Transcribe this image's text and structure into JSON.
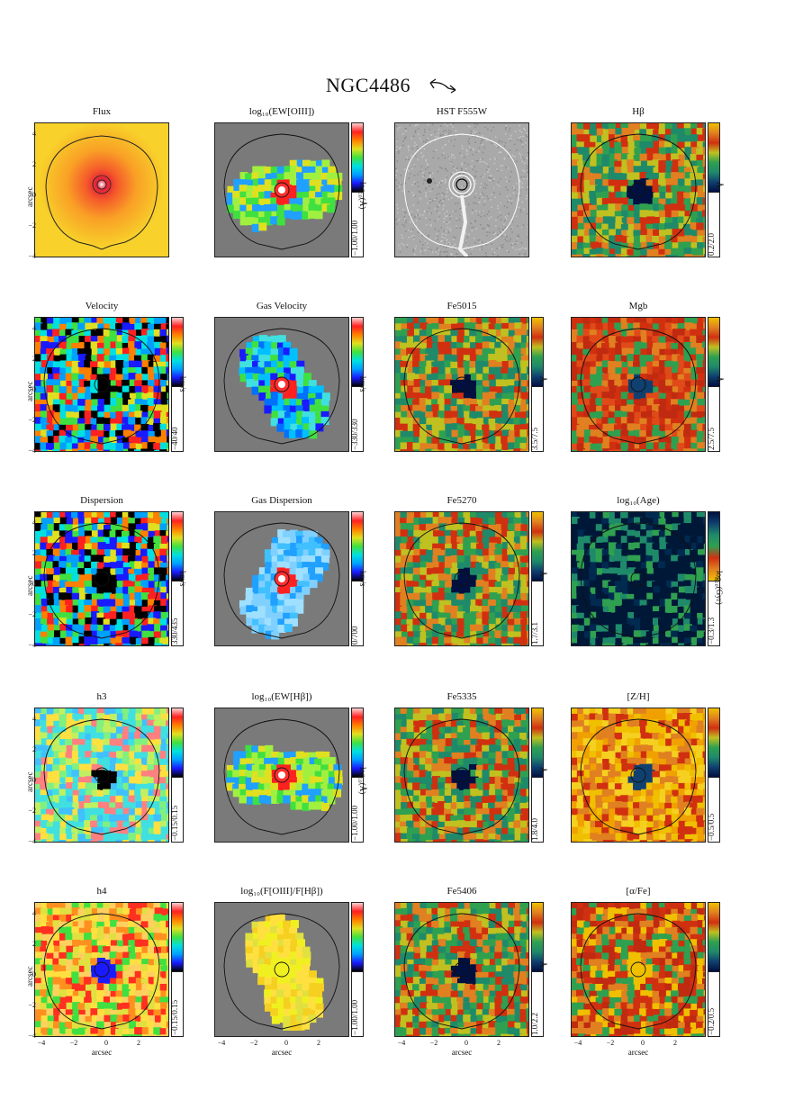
{
  "figure": {
    "title": "NGC4486",
    "axis_label": "arcsec",
    "y_ticks": [
      "4",
      "2",
      "0",
      "−2",
      "−4"
    ],
    "x_ticks": [
      "−4",
      "−2",
      "0",
      "2"
    ]
  },
  "panels": [
    {
      "title": "Flux",
      "range": "",
      "unit": "",
      "scheme": "flux"
    },
    {
      "title": "log₁₀(EW[OIII])",
      "range": "−1.00/1.00",
      "unit": "log₁₀(Å)",
      "scheme": "gasmap"
    },
    {
      "title": "HST F555W",
      "range": "",
      "unit": "",
      "scheme": "hst"
    },
    {
      "title": "Hβ",
      "range": "0.2/2.0",
      "unit": "Å",
      "scheme": "index"
    },
    {
      "title": "Velocity",
      "range": "−40/40",
      "unit": "km/s",
      "scheme": "rainbow"
    },
    {
      "title": "Gas Velocity",
      "range": "−330/330",
      "unit": "km/s",
      "scheme": "gasvel"
    },
    {
      "title": "Fe5015",
      "range": "3.5/7.5",
      "unit": "Å",
      "scheme": "index"
    },
    {
      "title": "Mgb",
      "range": "2.5/7.5",
      "unit": "Å",
      "scheme": "mgb"
    },
    {
      "title": "Dispersion",
      "range": "330/435",
      "unit": "km/s",
      "scheme": "rainbow"
    },
    {
      "title": "Gas Dispersion",
      "range": "0/700",
      "unit": "km/s",
      "scheme": "gasdisp"
    },
    {
      "title": "Fe5270",
      "range": "1.7/3.1",
      "unit": "Å",
      "scheme": "index"
    },
    {
      "title": "log₁₀(Age)",
      "range": "−0.3/1.3",
      "unit": "log₁₀(Gyr)",
      "scheme": "age"
    },
    {
      "title": "h3",
      "range": "−0.15/0.15",
      "unit": "",
      "scheme": "h3"
    },
    {
      "title": "log₁₀(EW[Hβ])",
      "range": "−1.00/1.00",
      "unit": "log₁₀(Å)",
      "scheme": "gasmap"
    },
    {
      "title": "Fe5335",
      "range": "1.8/4.0",
      "unit": "Å",
      "scheme": "index"
    },
    {
      "title": "[Z/H]",
      "range": "−0.5/0.5",
      "unit": "",
      "scheme": "zh"
    },
    {
      "title": "h4",
      "range": "−0.15/0.15",
      "unit": "",
      "scheme": "h4"
    },
    {
      "title": "log₁₀(F[OIII]/F[Hβ])",
      "range": "−1.00/1.00",
      "unit": "",
      "scheme": "ratio"
    },
    {
      "title": "Fe5406",
      "range": "1.0/2.2",
      "unit": "Å",
      "scheme": "index"
    },
    {
      "title": "[α/Fe]",
      "range": "−0.2/0.5",
      "unit": "",
      "scheme": "afe"
    }
  ],
  "colors": {
    "rainbow": [
      "#000000",
      "#1a1aff",
      "#00a0ff",
      "#00e0e0",
      "#40e040",
      "#e0e020",
      "#ff8000",
      "#ff2020",
      "#ffd0d0"
    ],
    "index": [
      "#001040",
      "#104070",
      "#1f8a6a",
      "#2fa050",
      "#c0c020",
      "#e08020",
      "#d03010",
      "#f0c000"
    ],
    "gray_background": "#7a7a7a"
  }
}
